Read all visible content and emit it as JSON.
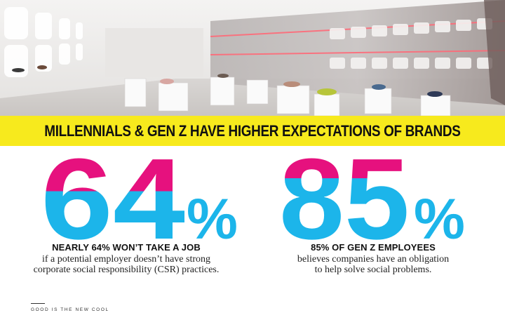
{
  "banner": {
    "headline": "MILLENNIALS & GEN Z HAVE HIGHER EXPECTATIONS OF BRANDS"
  },
  "stats": [
    {
      "number": "64",
      "percent_sign": "%",
      "headline": "NEARLY 64% WON’T TAKE A JOB",
      "body_line1": "if a potential employer doesn’t have strong",
      "body_line2": "corporate social responsibility (CSR) practices."
    },
    {
      "number": "85",
      "percent_sign": "%",
      "headline": "85% OF GEN Z EMPLOYEES",
      "body_line1": "believes companies have an obligation",
      "body_line2": "to help solve social problems."
    }
  ],
  "footer": {
    "text": "GOOD IS THE NEW COOL"
  },
  "colors": {
    "banner_yellow": "#f7ea1d",
    "stat_pink": "#e6117e",
    "stat_blue": "#1cb5ea"
  },
  "photo": {
    "subject": "shoe-store-interior-photo"
  }
}
